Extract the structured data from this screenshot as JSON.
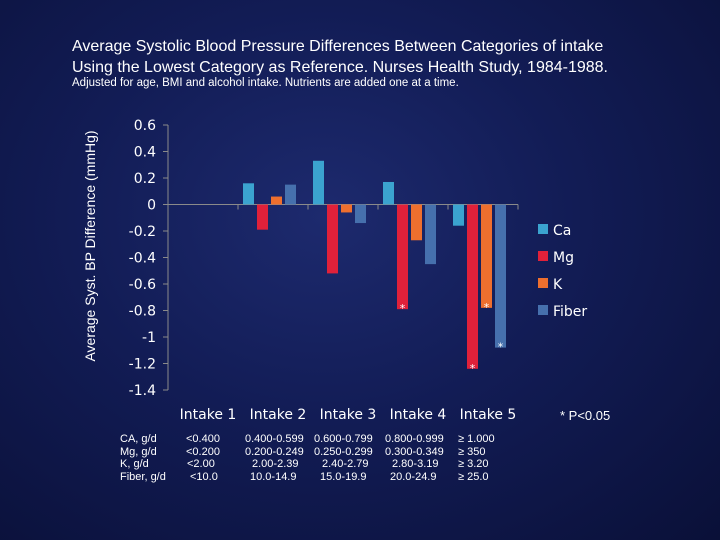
{
  "title_line1": "Average Systolic Blood Pressure Differences Between Categories of intake",
  "title_line2": "Using the Lowest Category as Reference. Nurses Health Study, 1984-1988.",
  "subtitle": "Adjusted for age, BMI and alcohol intake. Nutrients are added one at a time.",
  "footnote": "* P<0.05",
  "colors": {
    "Ca": "#3ba3cf",
    "Mg": "#e0213a",
    "K": "#ee6f2e",
    "Fiber": "#4670ad"
  },
  "chart_data": {
    "type": "bar",
    "title": "Average Systolic Blood Pressure Differences Between Categories of intake Using the Lowest Category as Reference. Nurses Health Study, 1984-1988.",
    "ylabel": "Average Syst. BP Difference (mmHg)",
    "xlabel": "",
    "categories": [
      "Intake 1",
      "Intake 2",
      "Intake 3",
      "Intake 4",
      "Intake 5"
    ],
    "ylim": [
      -1.4,
      0.6
    ],
    "yticks": [
      0.6,
      0.4,
      0.2,
      0,
      -0.2,
      -0.4,
      -0.6,
      -0.8,
      -1,
      -1.2,
      -1.4
    ],
    "ytick_labels": [
      "0.6",
      "0.4",
      "0.2",
      "0",
      "-0.2",
      "-0.4",
      "-0.6",
      "-0.8",
      "-1",
      "-1.2",
      "-1.4"
    ],
    "grid": false,
    "legend": "right",
    "series": [
      {
        "name": "Ca",
        "values": [
          0,
          0.16,
          0.33,
          0.17,
          -0.16
        ],
        "significant": [
          false,
          false,
          false,
          false,
          false
        ]
      },
      {
        "name": "Mg",
        "values": [
          0,
          -0.19,
          -0.52,
          -0.79,
          -1.24
        ],
        "significant": [
          false,
          false,
          false,
          true,
          true
        ]
      },
      {
        "name": "K",
        "values": [
          0,
          0.06,
          -0.06,
          -0.27,
          -0.78
        ],
        "significant": [
          false,
          false,
          false,
          false,
          true
        ]
      },
      {
        "name": "Fiber",
        "values": [
          0,
          0.15,
          -0.14,
          -0.45,
          -1.08
        ],
        "significant": [
          false,
          false,
          false,
          false,
          true
        ]
      }
    ],
    "significance_marker": "*"
  },
  "intake_table": [
    {
      "label": "CA, g/d",
      "values": [
        "<0.400",
        "0.400-0.599",
        "0.600-0.799",
        "0.800-0.999",
        "≥ 1.000"
      ]
    },
    {
      "label": "Mg, g/d",
      "values": [
        "<0.200",
        "0.200-0.249",
        "0.250-0.299",
        "0.300-0.349",
        "≥ 350"
      ]
    },
    {
      "label": "K, g/d",
      "values": [
        "<2.00",
        "2.00-2.39",
        "2.40-2.79",
        "2.80-3.19",
        "≥ 3.20"
      ]
    },
    {
      "label": "Fiber, g/d",
      "values": [
        "<10.0",
        "10.0-14.9",
        "15.0-19.9",
        "20.0-24.9",
        "≥ 25.0"
      ]
    }
  ]
}
